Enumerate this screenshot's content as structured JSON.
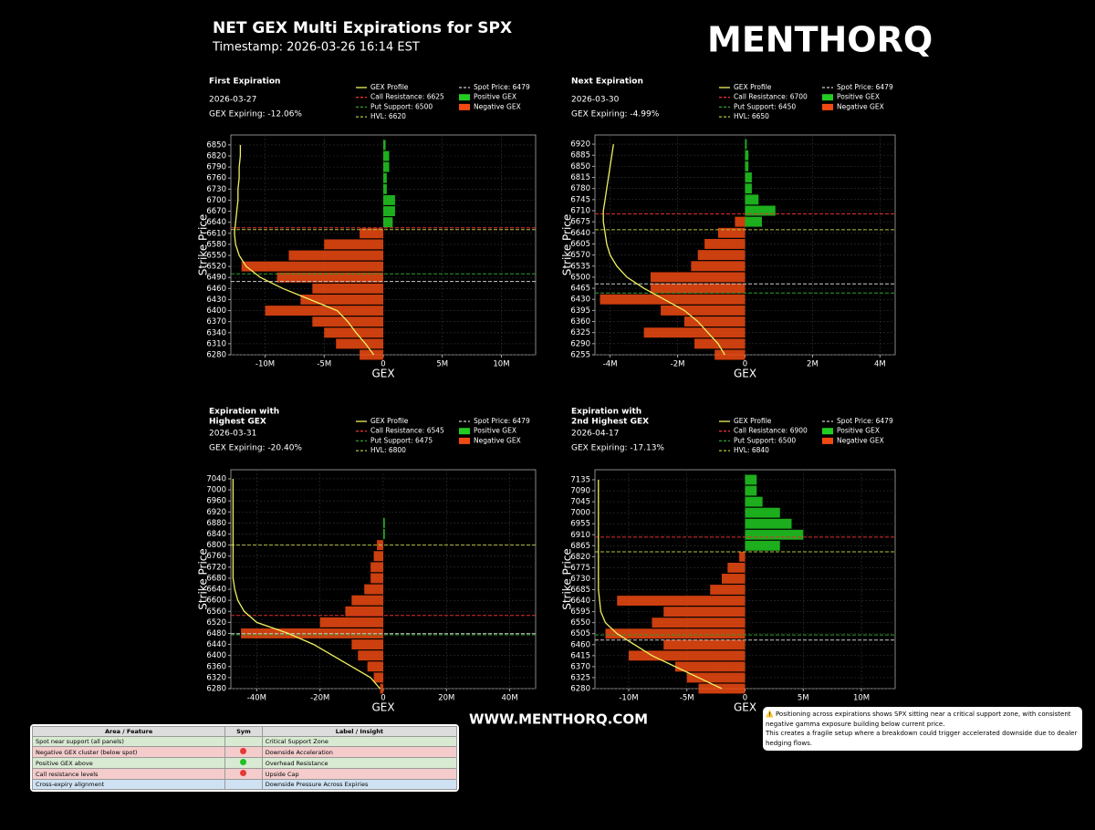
{
  "header": {
    "title": "NET GEX Multi Expirations for SPX",
    "timestamp": "Timestamp: 2026-03-26 16:14 EST",
    "logo": "MENTHORQ"
  },
  "footer": "WWW.MENTHORQ.COM",
  "chart_data": [
    {
      "type": "bar",
      "orientation": "horizontal",
      "title": [
        "First Expiration"
      ],
      "date": "2026-03-27",
      "gex_expiring": "GEX Expiring: -12.06%",
      "ylabel": "Strike Price",
      "xlabel": "GEX",
      "grid": true,
      "xlim": [
        -12900000,
        12900000
      ],
      "xticks": [
        {
          "value": -10000000,
          "label": "-10M"
        },
        {
          "value": -5000000,
          "label": "-5M"
        },
        0,
        {
          "value": 5000000,
          "label": "5M"
        },
        {
          "value": 10000000,
          "label": "10M"
        }
      ],
      "ylim": [
        6280,
        6877
      ],
      "yticks": [
        6280,
        6310,
        6340,
        6370,
        6400,
        6430,
        6460,
        6490,
        6520,
        6550,
        6580,
        6610,
        6640,
        6670,
        6700,
        6730,
        6760,
        6790,
        6820,
        6850
      ],
      "strikes": [
        6280,
        6310,
        6340,
        6370,
        6400,
        6430,
        6460,
        6490,
        6520,
        6550,
        6580,
        6610,
        6640,
        6670,
        6700,
        6730,
        6760,
        6790,
        6820,
        6850
      ],
      "profile": {
        "name": "GEX Profile",
        "color": "#f0f060",
        "values": [
          -800000,
          -1500000,
          -2300000,
          -3000000,
          -3900000,
          -6200000,
          -8500000,
          -10400000,
          -11600000,
          -12200000,
          -12500000,
          -12600000,
          -12500000,
          -12400000,
          -12300000,
          -12300000,
          -12200000,
          -12200000,
          -12100000,
          -12100000
        ]
      },
      "series": [
        {
          "name": "Positive GEX",
          "color": "#22cc22",
          "values": [
            null,
            null,
            null,
            null,
            null,
            null,
            null,
            null,
            null,
            null,
            null,
            null,
            800000,
            1000000,
            1000000,
            300000,
            300000,
            500000,
            500000,
            200000
          ]
        },
        {
          "name": "Negative GEX",
          "color": "#f04a12",
          "values": [
            -2000000,
            -4000000,
            -5000000,
            -6000000,
            -10000000,
            -7000000,
            -6000000,
            -9000000,
            -12000000,
            -8000000,
            -5000000,
            -2000000,
            null,
            null,
            null,
            null,
            null,
            null,
            null,
            null
          ]
        }
      ],
      "levels": [
        {
          "label": "Call Resistance: 6625",
          "value": 6625,
          "color": "#e03030"
        },
        {
          "label": "Put Support: 6500",
          "value": 6500,
          "color": "#2e9e2e"
        },
        {
          "label": "HVL: 6620",
          "value": 6620,
          "color": "#b8c040"
        },
        {
          "label": "Spot Price: 6479",
          "value": 6479,
          "color": "#cccccc"
        }
      ]
    },
    {
      "type": "bar",
      "orientation": "horizontal",
      "title": [
        "Next Expiration"
      ],
      "date": "2026-03-30",
      "gex_expiring": "GEX Expiring: -4.99%",
      "ylabel": "Strike Price",
      "xlabel": "GEX",
      "grid": true,
      "xlim": [
        -4450000,
        4450000
      ],
      "xticks": [
        {
          "value": -4000000,
          "label": "-4M"
        },
        {
          "value": -2000000,
          "label": "-2M"
        },
        0,
        {
          "value": 2000000,
          "label": "2M"
        },
        {
          "value": 4000000,
          "label": "4M"
        }
      ],
      "ylim": [
        6255,
        6949
      ],
      "yticks": [
        6255,
        6290,
        6325,
        6360,
        6395,
        6430,
        6465,
        6500,
        6535,
        6570,
        6605,
        6640,
        6675,
        6710,
        6745,
        6780,
        6815,
        6850,
        6885,
        6920
      ],
      "strikes": [
        6255,
        6290,
        6325,
        6360,
        6395,
        6430,
        6465,
        6500,
        6535,
        6570,
        6605,
        6640,
        6675,
        6710,
        6745,
        6780,
        6815,
        6850,
        6885,
        6920
      ],
      "profile": {
        "name": "GEX Profile",
        "color": "#f0f060",
        "values": [
          -600000,
          -800000,
          -1100000,
          -1400000,
          -1800000,
          -2400000,
          -3000000,
          -3500000,
          -3800000,
          -4000000,
          -4100000,
          -4150000,
          -4200000,
          -4200000,
          -4150000,
          -4100000,
          -4050000,
          -4000000,
          -3950000,
          -3900000
        ]
      },
      "series": [
        {
          "name": "Positive GEX",
          "color": "#22cc22",
          "values": [
            null,
            null,
            null,
            null,
            null,
            null,
            null,
            null,
            null,
            null,
            null,
            null,
            500000,
            900000,
            400000,
            200000,
            200000,
            100000,
            100000,
            50000
          ]
        },
        {
          "name": "Negative GEX",
          "color": "#f04a12",
          "values": [
            -900000,
            -1500000,
            -3000000,
            -1800000,
            -2500000,
            -4300000,
            -2800000,
            -2800000,
            -1600000,
            -1400000,
            -1200000,
            -800000,
            -300000,
            null,
            null,
            null,
            null,
            null,
            null,
            null
          ]
        }
      ],
      "levels": [
        {
          "label": "Call Resistance: 6700",
          "value": 6700,
          "color": "#e03030"
        },
        {
          "label": "Put Support: 6450",
          "value": 6450,
          "color": "#2e9e2e"
        },
        {
          "label": "HVL: 6650",
          "value": 6650,
          "color": "#b8c040"
        },
        {
          "label": "Spot Price: 6479",
          "value": 6479,
          "color": "#cccccc"
        }
      ]
    },
    {
      "type": "bar",
      "orientation": "horizontal",
      "title": [
        "Expiration with",
        "Highest GEX"
      ],
      "date": "2026-03-31",
      "gex_expiring": "GEX Expiring: -20.40%",
      "ylabel": "Strike Price",
      "xlabel": "GEX",
      "grid": true,
      "xlim": [
        -48200000,
        48200000
      ],
      "xticks": [
        {
          "value": -40000000,
          "label": "-40M"
        },
        {
          "value": -20000000,
          "label": "-20M"
        },
        0,
        {
          "value": 20000000,
          "label": "20M"
        },
        {
          "value": 40000000,
          "label": "40M"
        }
      ],
      "ylim": [
        6280,
        7073
      ],
      "yticks": [
        6280,
        6320,
        6360,
        6400,
        6440,
        6480,
        6520,
        6560,
        6600,
        6640,
        6680,
        6720,
        6760,
        6800,
        6840,
        6880,
        6920,
        6960,
        7000,
        7040
      ],
      "strikes": [
        6280,
        6320,
        6360,
        6400,
        6440,
        6480,
        6520,
        6560,
        6600,
        6640,
        6680,
        6720,
        6760,
        6800,
        6840,
        6880,
        6920,
        6960,
        7000,
        7040
      ],
      "profile": {
        "name": "GEX Profile",
        "color": "#f0f060",
        "values": [
          -1000000,
          -4000000,
          -10000000,
          -16000000,
          -22000000,
          -30000000,
          -40000000,
          -44000000,
          -46000000,
          -47000000,
          -47500000,
          -47500000,
          -47500000,
          -47500000,
          -47500000,
          -47500000,
          -47500000,
          -47500000,
          -47500000,
          -47500000
        ]
      },
      "series": [
        {
          "name": "Positive GEX",
          "color": "#22cc22",
          "values": [
            null,
            null,
            null,
            null,
            null,
            null,
            null,
            null,
            null,
            null,
            null,
            null,
            null,
            null,
            500000,
            500000,
            null,
            null,
            null,
            null
          ]
        },
        {
          "name": "Negative GEX",
          "color": "#f04a12",
          "values": [
            -1000000,
            -3000000,
            -5000000,
            -8000000,
            -10000000,
            -45000000,
            -20000000,
            -12000000,
            -10000000,
            -6000000,
            -4000000,
            -4000000,
            -3000000,
            -2000000,
            null,
            null,
            null,
            null,
            null,
            null
          ]
        }
      ],
      "levels": [
        {
          "label": "Call Resistance: 6545",
          "value": 6545,
          "color": "#e03030"
        },
        {
          "label": "Put Support: 6475",
          "value": 6475,
          "color": "#2e9e2e"
        },
        {
          "label": "HVL: 6800",
          "value": 6800,
          "color": "#b8c040"
        },
        {
          "label": "Spot Price: 6479",
          "value": 6479,
          "color": "#cccccc"
        }
      ]
    },
    {
      "type": "bar",
      "orientation": "horizontal",
      "title": [
        "Expiration with",
        "2nd Highest GEX"
      ],
      "date": "2026-04-17",
      "gex_expiring": "GEX Expiring: -17.13%",
      "ylabel": "Strike Price",
      "xlabel": "GEX",
      "grid": true,
      "xlim": [
        -12900000,
        12900000
      ],
      "xticks": [
        {
          "value": -10000000,
          "label": "-10M"
        },
        {
          "value": -5000000,
          "label": "-5M"
        },
        0,
        {
          "value": 5000000,
          "label": "5M"
        },
        {
          "value": 10000000,
          "label": "10M"
        }
      ],
      "ylim": [
        6280,
        7176
      ],
      "yticks": [
        6280,
        6325,
        6370,
        6415,
        6460,
        6505,
        6550,
        6595,
        6640,
        6685,
        6730,
        6775,
        6820,
        6865,
        6910,
        6955,
        7000,
        7045,
        7090,
        7135
      ],
      "strikes": [
        6280,
        6325,
        6370,
        6415,
        6460,
        6505,
        6550,
        6595,
        6640,
        6685,
        6730,
        6775,
        6820,
        6865,
        6910,
        6955,
        7000,
        7045,
        7090,
        7135
      ],
      "profile": {
        "name": "GEX Profile",
        "color": "#f0f060",
        "values": [
          -2000000,
          -4000000,
          -6000000,
          -8000000,
          -9500000,
          -11000000,
          -12000000,
          -12400000,
          -12500000,
          -12600000,
          -12600000,
          -12600000,
          -12600000,
          -12600000,
          -12600000,
          -12600000,
          -12600000,
          -12600000,
          -12600000,
          -12600000
        ]
      },
      "series": [
        {
          "name": "Positive GEX",
          "color": "#22cc22",
          "values": [
            null,
            null,
            null,
            null,
            null,
            null,
            null,
            null,
            null,
            null,
            null,
            null,
            null,
            3000000,
            5000000,
            4000000,
            3000000,
            1500000,
            1000000,
            1000000
          ]
        },
        {
          "name": "Negative GEX",
          "color": "#f04a12",
          "values": [
            -4000000,
            -5000000,
            -6000000,
            -10000000,
            -7000000,
            -12000000,
            -8000000,
            -7000000,
            -11000000,
            -3000000,
            -2000000,
            -1500000,
            -500000,
            null,
            null,
            null,
            null,
            null,
            null,
            null
          ]
        }
      ],
      "levels": [
        {
          "label": "Call Resistance: 6900",
          "value": 6900,
          "color": "#e03030"
        },
        {
          "label": "Put Support: 6500",
          "value": 6500,
          "color": "#2e9e2e"
        },
        {
          "label": "HVL: 6840",
          "value": 6840,
          "color": "#b8c040"
        },
        {
          "label": "Spot Price: 6479",
          "value": 6479,
          "color": "#cccccc"
        }
      ]
    }
  ],
  "table": {
    "header": [
      "Area / Feature",
      "Sym",
      "Label / Insight"
    ],
    "rows": [
      {
        "cells": [
          "Spot near support (all panels)",
          "Critical Support Zone"
        ],
        "row_color": "#d9ead3",
        "dot_color": null
      },
      {
        "cells": [
          "Negative GEX cluster (below spot)",
          "Downside Acceleration"
        ],
        "row_color": "#f4cccc",
        "dot_color": "#e53935"
      },
      {
        "cells": [
          "Positive GEX above",
          "Overhead Resistance"
        ],
        "row_color": "#d9ead3",
        "dot_color": "#22c022"
      },
      {
        "cells": [
          "Call resistance levels",
          "Upside Cap"
        ],
        "row_color": "#f4cccc",
        "dot_color": "#e53935"
      },
      {
        "cells": [
          "Cross-expiry alignment",
          "Downside Pressure Across Expiries"
        ],
        "row_color": "#cfe2f3",
        "dot_color": null
      }
    ]
  },
  "note": [
    "⚠️ Positioning across expirations shows SPX sitting near a critical support zone, with consistent negative gamma exposure building below current price.",
    "This creates a fragile setup where a breakdown could trigger accelerated downside due to dealer hedging flows."
  ]
}
